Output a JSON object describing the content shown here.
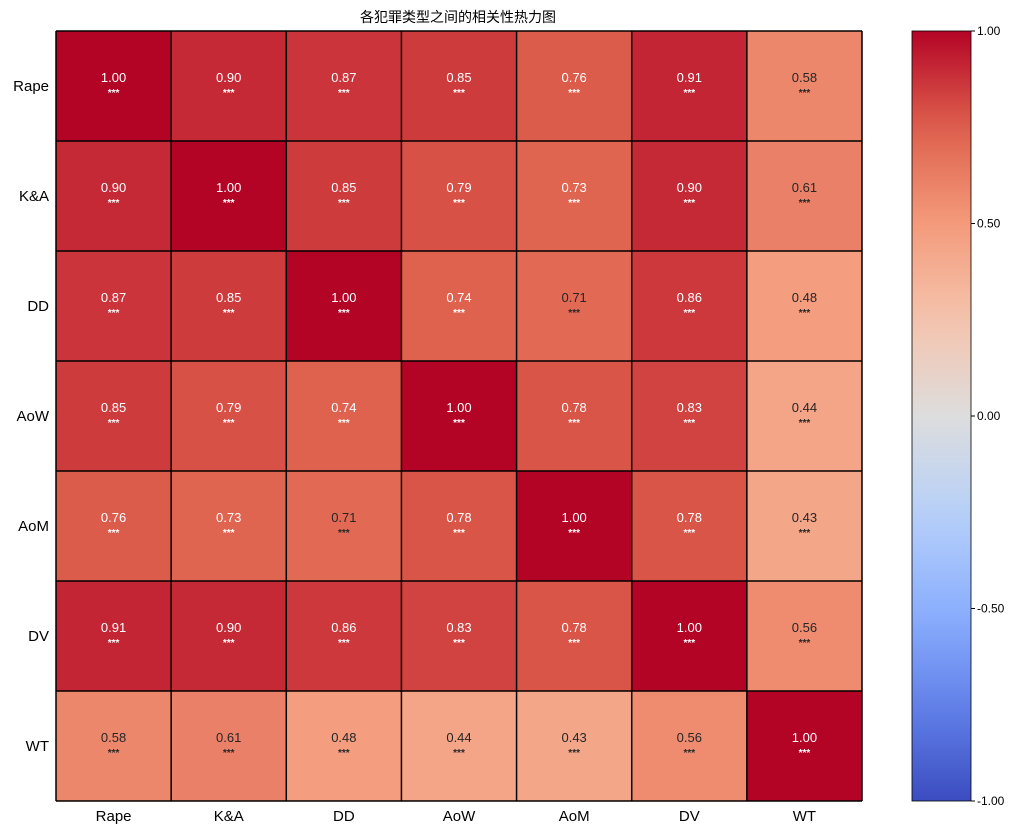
{
  "chart_data": {
    "type": "heatmap",
    "title": "各犯罪类型之间的相关性热力图",
    "rows": [
      "Rape",
      "K&A",
      "DD",
      "AoW",
      "AoM",
      "DV",
      "WT"
    ],
    "columns": [
      "Rape",
      "K&A",
      "DD",
      "AoW",
      "AoM",
      "DV",
      "WT"
    ],
    "values": [
      [
        1.0,
        0.9,
        0.87,
        0.85,
        0.76,
        0.91,
        0.58
      ],
      [
        0.9,
        1.0,
        0.85,
        0.79,
        0.73,
        0.9,
        0.61
      ],
      [
        0.87,
        0.85,
        1.0,
        0.74,
        0.71,
        0.86,
        0.48
      ],
      [
        0.85,
        0.79,
        0.74,
        1.0,
        0.78,
        0.83,
        0.44
      ],
      [
        0.76,
        0.73,
        0.71,
        0.78,
        1.0,
        0.78,
        0.43
      ],
      [
        0.91,
        0.9,
        0.86,
        0.83,
        0.78,
        1.0,
        0.56
      ],
      [
        0.58,
        0.61,
        0.48,
        0.44,
        0.43,
        0.56,
        1.0
      ]
    ],
    "value_labels": [
      [
        "1.00",
        "0.90",
        "0.87",
        "0.85",
        "0.76",
        "0.91",
        "0.58"
      ],
      [
        "0.90",
        "1.00",
        "0.85",
        "0.79",
        "0.73",
        "0.90",
        "0.61"
      ],
      [
        "0.87",
        "0.85",
        "1.00",
        "0.74",
        "0.71",
        "0.86",
        "0.48"
      ],
      [
        "0.85",
        "0.79",
        "0.74",
        "1.00",
        "0.78",
        "0.83",
        "0.44"
      ],
      [
        "0.76",
        "0.73",
        "0.71",
        "0.78",
        "1.00",
        "0.78",
        "0.43"
      ],
      [
        "0.91",
        "0.90",
        "0.86",
        "0.83",
        "0.78",
        "1.00",
        "0.56"
      ],
      [
        "0.58",
        "0.61",
        "0.48",
        "0.44",
        "0.43",
        "0.56",
        "1.00"
      ]
    ],
    "significance": [
      [
        "***",
        "***",
        "***",
        "***",
        "***",
        "***",
        "***"
      ],
      [
        "***",
        "***",
        "***",
        "***",
        "***",
        "***",
        "***"
      ],
      [
        "***",
        "***",
        "***",
        "***",
        "***",
        "***",
        "***"
      ],
      [
        "***",
        "***",
        "***",
        "***",
        "***",
        "***",
        "***"
      ],
      [
        "***",
        "***",
        "***",
        "***",
        "***",
        "***",
        "***"
      ],
      [
        "***",
        "***",
        "***",
        "***",
        "***",
        "***",
        "***"
      ],
      [
        "***",
        "***",
        "***",
        "***",
        "***",
        "***",
        "***"
      ]
    ],
    "colormap": "coolwarm",
    "vmin": -1.0,
    "vmax": 1.0,
    "colorbar_ticks": [
      {
        "value": 1.0,
        "label": "1.00"
      },
      {
        "value": 0.5,
        "label": "0.50"
      },
      {
        "value": 0.0,
        "label": "0.00"
      },
      {
        "value": -0.5,
        "label": "-0.50"
      },
      {
        "value": -1.0,
        "label": "-1.00"
      }
    ],
    "cell_border_color": "#000000",
    "light_text_color": "#ffffff",
    "dark_text_color": "#262626"
  }
}
